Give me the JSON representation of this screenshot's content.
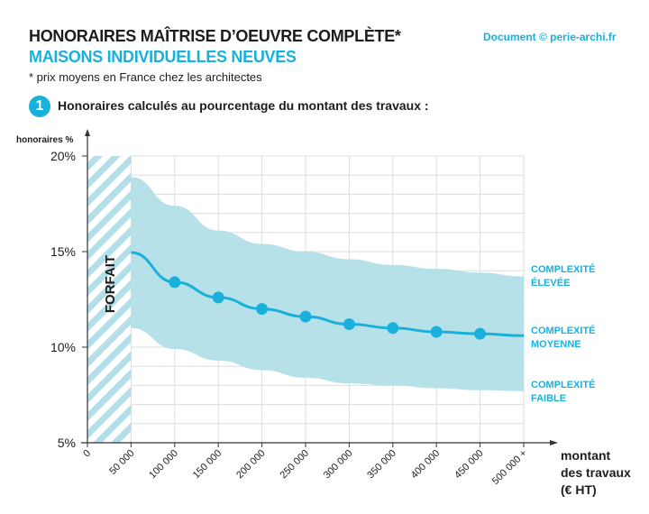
{
  "header": {
    "title": "HONORAIRES MAÎTRISE D’OEUVRE COMPLÈTE*",
    "subtitle": "MAISONS INDIVIDUELLES NEUVES",
    "note": "* prix moyens en France chez les architectes",
    "credit": "Document © perie-archi.fr",
    "section_number": "1",
    "section_title": "Honoraires calculés au pourcentage du montant des travaux :"
  },
  "colors": {
    "accent": "#1ab0dc",
    "band": "#b3dfe8",
    "text": "#1d1d1b",
    "grid": "#dddddd"
  },
  "chart_data": {
    "type": "line",
    "ylabel": "honoraires %",
    "xlabel_lines": [
      "montant",
      "des travaux",
      "(€ HT)"
    ],
    "ylim": [
      5,
      20
    ],
    "yticks": [
      5,
      10,
      15,
      20
    ],
    "ytick_labels": [
      "5%",
      "10%",
      "15%",
      "20%"
    ],
    "xlim": [
      0,
      500000
    ],
    "xtick_labels": [
      "0",
      "50 000",
      "100 000",
      "150 000",
      "200 000",
      "250 000",
      "300 000",
      "350 000",
      "400 000",
      "450 000",
      "500 000 +"
    ],
    "grid": true,
    "forfait": {
      "label": "FORFAIT",
      "range": [
        0,
        50000
      ]
    },
    "x": [
      50000,
      100000,
      150000,
      200000,
      250000,
      300000,
      350000,
      400000,
      450000,
      500000
    ],
    "series": [
      {
        "name": "COMPLEXITÉ ÉLEVÉE",
        "label_lines": [
          "COMPLEXITÉ",
          "ÉLEVÉE"
        ],
        "values": [
          18.9,
          17.4,
          16.1,
          15.4,
          15.0,
          14.6,
          14.3,
          14.1,
          13.9,
          13.7
        ]
      },
      {
        "name": "COMPLEXITÉ MOYENNE",
        "label_lines": [
          "COMPLEXITÉ",
          "MOYENNE"
        ],
        "values": [
          14.95,
          13.4,
          12.6,
          12.0,
          11.6,
          11.2,
          11.0,
          10.8,
          10.7,
          10.6
        ],
        "markers_at": [
          100000,
          150000,
          200000,
          250000,
          300000,
          350000,
          400000,
          450000
        ]
      },
      {
        "name": "COMPLEXITÉ FAIBLE",
        "label_lines": [
          "COMPLEXITÉ",
          "FAIBLE"
        ],
        "values": [
          11.0,
          9.9,
          9.3,
          8.8,
          8.4,
          8.1,
          8.0,
          7.85,
          7.75,
          7.7
        ]
      }
    ]
  }
}
